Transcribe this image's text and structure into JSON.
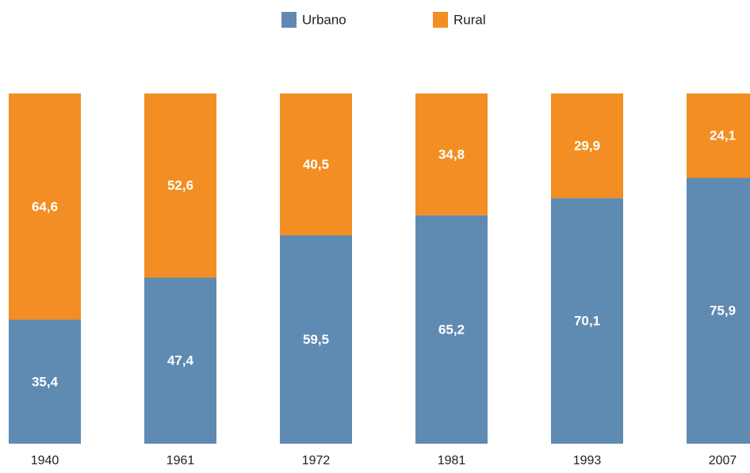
{
  "chart_data": {
    "type": "stacked_bar",
    "categories": [
      "1940",
      "1961",
      "1972",
      "1981",
      "1993",
      "2007"
    ],
    "series": [
      {
        "name": "Urbano",
        "color": "#5f8ab2",
        "values": [
          35.4,
          47.4,
          59.5,
          65.2,
          70.1,
          75.9
        ],
        "value_labels": [
          "35,4",
          "47,4",
          "59,5",
          "65,2",
          "70,1",
          "75,9"
        ]
      },
      {
        "name": "Rural",
        "color": "#f28e23",
        "values": [
          64.6,
          52.6,
          40.5,
          34.8,
          29.9,
          24.1
        ],
        "value_labels": [
          "64,6",
          "52,6",
          "40,5",
          "34,8",
          "29,9",
          "24,1"
        ]
      }
    ],
    "ylim": [
      0,
      100
    ],
    "legend": "top"
  }
}
